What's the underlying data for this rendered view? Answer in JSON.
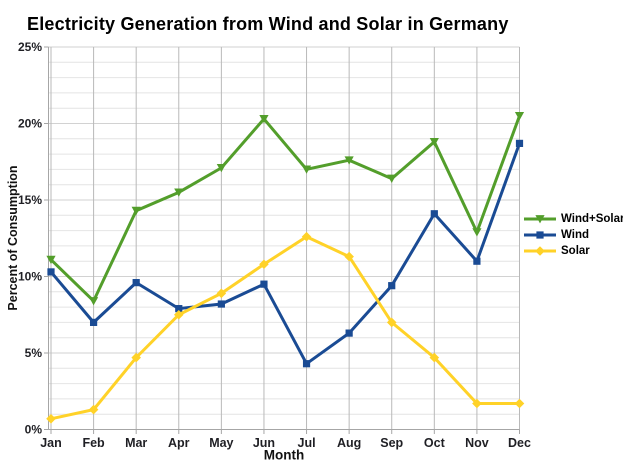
{
  "page": {
    "background": "#ffffff"
  },
  "chart_data": {
    "type": "line",
    "title": "Electricity Generation from Wind and Solar in Germany",
    "xlabel": "Month",
    "ylabel": "Percent of Consumption",
    "categories": [
      "Jan",
      "Feb",
      "Mar",
      "Apr",
      "May",
      "Jun",
      "Jul",
      "Aug",
      "Sep",
      "Oct",
      "Nov",
      "Dec"
    ],
    "ylim": [
      0,
      25
    ],
    "y_major_step": 5,
    "y_minor_step": 1,
    "y_tick_labels": [
      "0%",
      "5%",
      "10%",
      "15%",
      "20%",
      "25%"
    ],
    "grid": true,
    "legend_position": "right-middle",
    "series": [
      {
        "name": "Wind+Solar",
        "color": "#539E2B",
        "marker": "triangle-down",
        "values": [
          11.1,
          8.4,
          14.3,
          15.5,
          17.1,
          20.3,
          17.0,
          17.6,
          16.4,
          18.8,
          12.9,
          20.5
        ]
      },
      {
        "name": "Wind",
        "color": "#1A4B94",
        "marker": "square",
        "values": [
          10.3,
          7.0,
          9.6,
          7.9,
          8.2,
          9.5,
          4.3,
          6.3,
          9.4,
          14.1,
          11.0,
          18.7
        ]
      },
      {
        "name": "Solar",
        "color": "#FFD228",
        "marker": "diamond",
        "values": [
          0.7,
          1.3,
          4.7,
          7.5,
          8.9,
          10.8,
          12.6,
          11.3,
          7.0,
          4.7,
          1.7,
          1.7
        ]
      }
    ],
    "colors": {
      "axis": "#a6a6a6",
      "grid_minor": "#e4e4e4",
      "grid_major": "#d2d2d2",
      "grid_vertical": "#b9b9b9",
      "tick_text": "#1f1f24"
    }
  }
}
